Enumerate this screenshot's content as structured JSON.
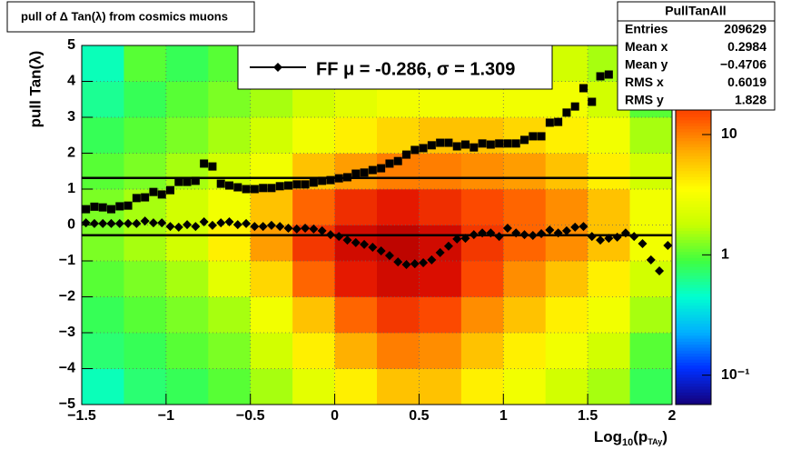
{
  "chart_data": {
    "type": "heatmap",
    "title": "pull of Δ Tan(λ) from cosmics muons",
    "y_label": "pull Tan(λ)",
    "x_label": {
      "text": "Log",
      "sub": "10",
      "text2": "(p",
      "sub2": "TAy",
      "text3": ")"
    },
    "xlim": [
      -1.5,
      2
    ],
    "ylim": [
      -5,
      5
    ],
    "xticks": [
      {
        "value": -1.5,
        "label": "−1.5"
      },
      {
        "value": -1,
        "label": "−1"
      },
      {
        "value": -0.5,
        "label": "−0.5"
      },
      0,
      0.5,
      1,
      1.5,
      2
    ],
    "yticks": [
      {
        "value": -5,
        "label": "−5"
      },
      {
        "value": -4,
        "label": "−4"
      },
      {
        "value": -3,
        "label": "−3"
      },
      {
        "value": -2,
        "label": "−2"
      },
      {
        "value": -1,
        "label": "−1"
      },
      0,
      1,
      2,
      3,
      4,
      5
    ],
    "grid": true,
    "log_z": true,
    "zlim": [
      0.057,
      55
    ],
    "zticks": [
      {
        "value": 0.1,
        "label": "10⁻¹"
      },
      1,
      10
    ],
    "palette": [
      "#14007a",
      "#0030ff",
      "#00b0ff",
      "#00ffd0",
      "#40ff40",
      "#c8ff00",
      "#ffff00",
      "#ffb000",
      "#ff5000",
      "#e01000",
      "#b00000"
    ],
    "xbins": [
      -1.5,
      -1.25,
      -1,
      -0.75,
      -0.5,
      -0.25,
      0,
      0.25,
      0.5,
      0.75,
      1,
      1.25,
      1.5,
      1.75,
      2
    ],
    "ybins": [
      -5,
      -4,
      -3,
      -2,
      -1,
      0,
      1,
      2,
      3,
      4,
      5
    ],
    "z": [
      [
        0.5,
        0.7,
        0.8,
        1,
        1.5,
        2.5,
        4,
        6,
        6,
        4,
        3,
        2,
        1.5,
        0.8
      ],
      [
        0.7,
        0.8,
        1,
        1.2,
        2,
        4,
        7,
        10,
        9,
        6,
        4,
        3,
        2,
        1
      ],
      [
        0.8,
        1,
        1.2,
        1.5,
        3,
        6,
        12,
        18,
        15,
        9,
        6,
        4,
        3,
        1.5
      ],
      [
        1,
        1.2,
        1.5,
        2.5,
        5,
        12,
        25,
        35,
        30,
        15,
        9,
        6,
        4,
        2
      ],
      [
        1.2,
        1.5,
        2,
        4,
        8,
        18,
        35,
        45,
        35,
        18,
        12,
        9,
        6,
        3
      ],
      [
        1.2,
        1.5,
        2,
        3,
        6,
        12,
        20,
        25,
        20,
        15,
        12,
        9,
        6,
        3
      ],
      [
        1,
        1.2,
        1.5,
        2,
        3,
        6,
        8,
        10,
        10,
        9,
        8,
        6,
        4,
        2
      ],
      [
        0.8,
        1,
        1.2,
        1.5,
        2,
        3,
        4,
        5,
        6,
        6,
        5,
        4,
        3,
        1.5
      ],
      [
        0.6,
        0.8,
        1,
        1.2,
        1.5,
        2,
        2.5,
        3,
        3,
        3,
        3,
        3,
        2,
        1
      ],
      [
        0.5,
        1,
        0.8,
        1,
        1.2,
        1.5,
        1.5,
        2,
        2,
        2,
        2,
        2,
        1.5,
        0.7
      ]
    ],
    "series": [
      {
        "marker": "square",
        "color": "#000000",
        "x": [
          -1.475,
          -1.425,
          -1.375,
          -1.325,
          -1.275,
          -1.225,
          -1.175,
          -1.125,
          -1.075,
          -1.025,
          -0.975,
          -0.925,
          -0.875,
          -0.825,
          -0.775,
          -0.725,
          -0.675,
          -0.625,
          -0.575,
          -0.525,
          -0.475,
          -0.425,
          -0.375,
          -0.325,
          -0.275,
          -0.225,
          -0.175,
          -0.125,
          -0.075,
          -0.025,
          0.025,
          0.075,
          0.125,
          0.175,
          0.225,
          0.275,
          0.325,
          0.375,
          0.425,
          0.475,
          0.525,
          0.575,
          0.625,
          0.675,
          0.725,
          0.775,
          0.825,
          0.875,
          0.925,
          0.975,
          1.025,
          1.075,
          1.125,
          1.175,
          1.225,
          1.275,
          1.325,
          1.375,
          1.425,
          1.475,
          1.525,
          1.575,
          1.625
        ],
        "values": [
          0.44,
          0.51,
          0.49,
          0.44,
          0.52,
          0.54,
          0.75,
          0.77,
          0.92,
          0.85,
          0.97,
          1.2,
          1.2,
          1.23,
          1.71,
          1.63,
          1.15,
          1.1,
          1.05,
          1.0,
          1.0,
          1.03,
          1.03,
          1.08,
          1.1,
          1.13,
          1.13,
          1.18,
          1.23,
          1.25,
          1.3,
          1.33,
          1.43,
          1.46,
          1.53,
          1.58,
          1.71,
          1.78,
          1.96,
          2.09,
          2.14,
          2.22,
          2.29,
          2.29,
          2.19,
          2.24,
          2.16,
          2.27,
          2.24,
          2.27,
          2.27,
          2.27,
          2.37,
          2.47,
          2.47,
          2.85,
          2.87,
          3.13,
          3.3,
          3.81,
          3.43,
          4.14,
          4.19
        ]
      },
      {
        "name": "FF μ = -0.286, σ =   1.309",
        "marker": "diamond",
        "color": "#000000",
        "x": [
          -1.475,
          -1.425,
          -1.375,
          -1.325,
          -1.275,
          -1.225,
          -1.175,
          -1.125,
          -1.075,
          -1.025,
          -0.975,
          -0.925,
          -0.875,
          -0.825,
          -0.775,
          -0.725,
          -0.675,
          -0.625,
          -0.575,
          -0.525,
          -0.475,
          -0.425,
          -0.375,
          -0.325,
          -0.275,
          -0.225,
          -0.175,
          -0.125,
          -0.075,
          -0.025,
          0.025,
          0.075,
          0.125,
          0.175,
          0.225,
          0.275,
          0.325,
          0.375,
          0.425,
          0.475,
          0.525,
          0.575,
          0.625,
          0.675,
          0.725,
          0.775,
          0.825,
          0.875,
          0.925,
          0.975,
          1.025,
          1.075,
          1.125,
          1.175,
          1.225,
          1.275,
          1.325,
          1.375,
          1.425,
          1.475,
          1.525,
          1.575,
          1.625,
          1.675,
          1.725,
          1.775,
          1.825,
          1.875,
          1.925,
          1.975
        ],
        "values": [
          0.06,
          0.04,
          0.04,
          0.04,
          0.04,
          0.04,
          0.04,
          0.11,
          0.06,
          0.06,
          -0.04,
          -0.06,
          0.01,
          -0.04,
          0.09,
          -0.01,
          0.06,
          0.09,
          0.01,
          0.04,
          -0.04,
          -0.04,
          -0.01,
          -0.04,
          -0.09,
          -0.11,
          -0.09,
          -0.11,
          -0.16,
          -0.27,
          -0.32,
          -0.42,
          -0.49,
          -0.54,
          -0.62,
          -0.72,
          -0.85,
          -1.03,
          -1.1,
          -1.08,
          -1.05,
          -0.97,
          -0.77,
          -0.59,
          -0.39,
          -0.37,
          -0.27,
          -0.22,
          -0.22,
          -0.32,
          -0.09,
          -0.22,
          -0.27,
          -0.29,
          -0.24,
          -0.14,
          -0.22,
          -0.16,
          -0.06,
          -0.04,
          -0.32,
          -0.42,
          -0.37,
          -0.34,
          -0.22,
          -0.32,
          -0.52,
          -0.97,
          -1.28,
          -0.57
        ]
      }
    ],
    "fit": {
      "mu": -0.286,
      "sigma": 1.309
    },
    "stats": {
      "title": "PullTanAll",
      "rows": [
        [
          "Entries",
          "209629"
        ],
        [
          "Mean x",
          "0.2984"
        ],
        [
          "Mean y",
          "−0.4706"
        ],
        [
          "RMS x",
          "0.6019"
        ],
        [
          "RMS y",
          "1.828"
        ]
      ]
    }
  }
}
